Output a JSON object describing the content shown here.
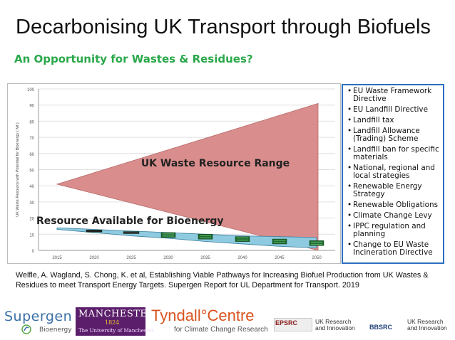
{
  "slide": {
    "title": "Decarbonising UK Transport through Biofuels",
    "subtitle": "An Opportunity for Wastes & Residues?"
  },
  "chart_data": {
    "type": "area",
    "ylabel": "UK Waste Resource with Potential for Bioenergy ( Mt )",
    "xlabel": "",
    "ylim": [
      0,
      100
    ],
    "y_ticks": [
      "0",
      "10",
      "20",
      "30",
      "40",
      "50",
      "60",
      "70",
      "80",
      "90",
      "100"
    ],
    "categories": [
      "2015",
      "2020",
      "2025",
      "2030",
      "2035",
      "2040",
      "2045",
      "2050"
    ],
    "grid": true,
    "waste_range": {
      "label": "UK Waste Resource Range",
      "color": "#d98d8d",
      "x_start": "2015",
      "x_end": "2050",
      "start_value": 41,
      "end_lower": 0,
      "end_upper": 91
    },
    "bioenergy_band": {
      "label": "Resource Available for Bioenergy",
      "color": "#8fcbe0",
      "upper": [
        14,
        13,
        12,
        11,
        10,
        9,
        8.5,
        8
      ],
      "lower": [
        13,
        11,
        9,
        7.5,
        5.5,
        4,
        2.5,
        1.5
      ]
    },
    "markers": {
      "series": "Resource markers",
      "x": [
        "2020",
        "2025",
        "2030",
        "2035",
        "2040",
        "2045",
        "2050"
      ],
      "values": [
        12,
        11,
        9.5,
        8.5,
        7,
        5.5,
        4.5
      ],
      "colors": [
        "#222222",
        "#333333",
        "#1e6b2e",
        "#1e6b2e",
        "#1e6b2e",
        "#1e6b2e",
        "#1e6b2e"
      ]
    }
  },
  "policies": {
    "items": [
      "EU Waste Framework Directive",
      "EU Landfill Directive",
      "Landfill tax",
      "Landfill Allowance (Trading) Scheme",
      "Landfill ban for specific materials",
      "National, regional and local strategies",
      "Renewable Energy Strategy",
      "Renewable Obligations",
      "Climate Change Levy",
      "IPPC regulation and planning",
      "Change to EU Waste Incineration Directive"
    ],
    "border_color": "#2c6fbf"
  },
  "citation": "Welfle, A. Wagland, S. Chong, K. et al, Establishing Viable Pathways for Increasing Biofuel Production from UK Wastes & Residues to meet Transport Energy Targets. Supergen Report for UL Department for Transport. 2019",
  "logos": {
    "supergen": "Supergen",
    "supergen_sub": "Bioenergy",
    "manchester": "MANCHESTER",
    "manchester_year": "1824",
    "manchester_uni": "The University of Manchester",
    "tyndall": "Tyndall°Centre",
    "tyndall_sub": "for Climate Change Research",
    "epsrc": "EPSRC",
    "ukri_1": "UK Research and Innovation",
    "bbsrc": "BBSRC",
    "ukri_2": "UK Research and Innovation"
  }
}
